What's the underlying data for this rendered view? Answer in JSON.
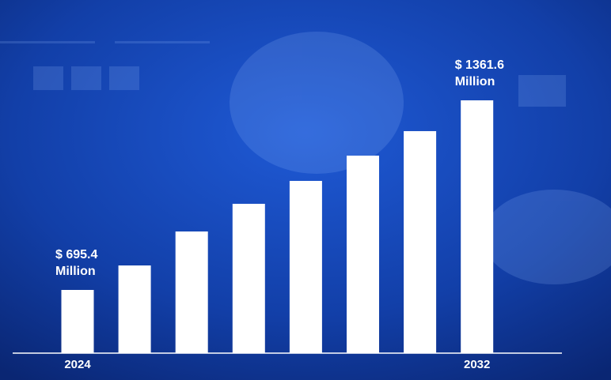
{
  "chart_data": {
    "type": "bar",
    "categories": [
      "2024",
      null,
      null,
      null,
      null,
      null,
      null,
      "2032"
    ],
    "values": [
      695.4,
      781.4,
      900.8,
      998.0,
      1078.5,
      1167.3,
      1253.4,
      1361.6
    ],
    "value_labels": [
      "$ 695.4 Million",
      null,
      null,
      null,
      null,
      null,
      null,
      "$ 1361.6 Million"
    ],
    "color": "#ffffff",
    "ylim": [
      473.3,
      1361.6
    ]
  }
}
